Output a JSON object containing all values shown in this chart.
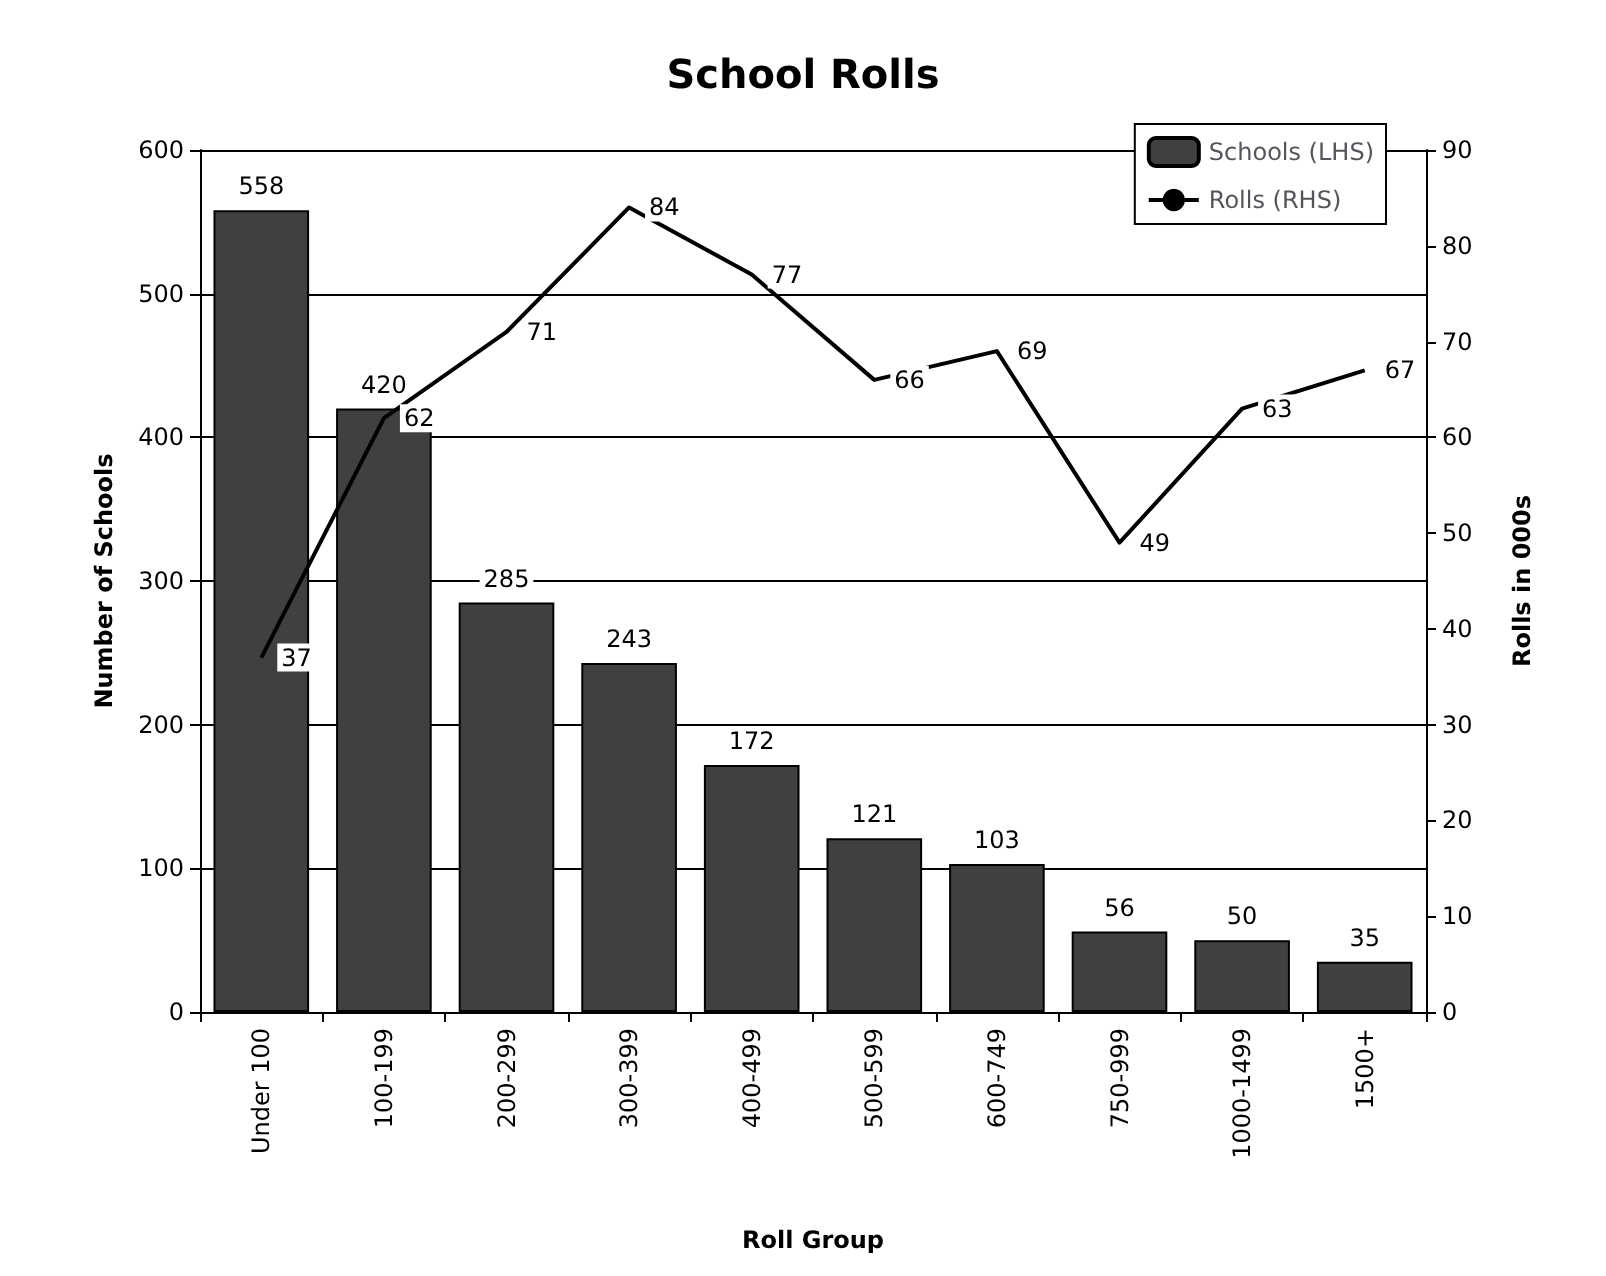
{
  "chart_data": {
    "type": "bar",
    "title": "School Rolls",
    "xlabel": "Roll Group",
    "ylabel": "Number of Schools",
    "y2label": "Rolls in 000s",
    "categories": [
      "Under 100",
      "100-199",
      "200-299",
      "300-399",
      "400-499",
      "500-599",
      "600-749",
      "750-999",
      "1000-1499",
      "1500+"
    ],
    "series": [
      {
        "name": "Schools (LHS)",
        "color": "#404040",
        "values": [
          558,
          420,
          285,
          243,
          172,
          121,
          103,
          56,
          50,
          35
        ]
      },
      {
        "name": "Rolls (RHS)",
        "type": "line",
        "axis": "y2",
        "color": "#000000",
        "values": [
          37,
          62,
          71,
          84,
          77,
          66,
          69,
          49,
          63,
          67
        ]
      }
    ],
    "ylim": [
      0,
      600
    ],
    "yticks": [
      0,
      100,
      200,
      300,
      400,
      500,
      600
    ],
    "y2lim": [
      0,
      90
    ],
    "y2ticks": [
      0,
      10,
      20,
      30,
      40,
      50,
      60,
      70,
      80,
      90
    ],
    "grid": "y",
    "legend": "top right",
    "data_labels": true,
    "marker": "none"
  }
}
